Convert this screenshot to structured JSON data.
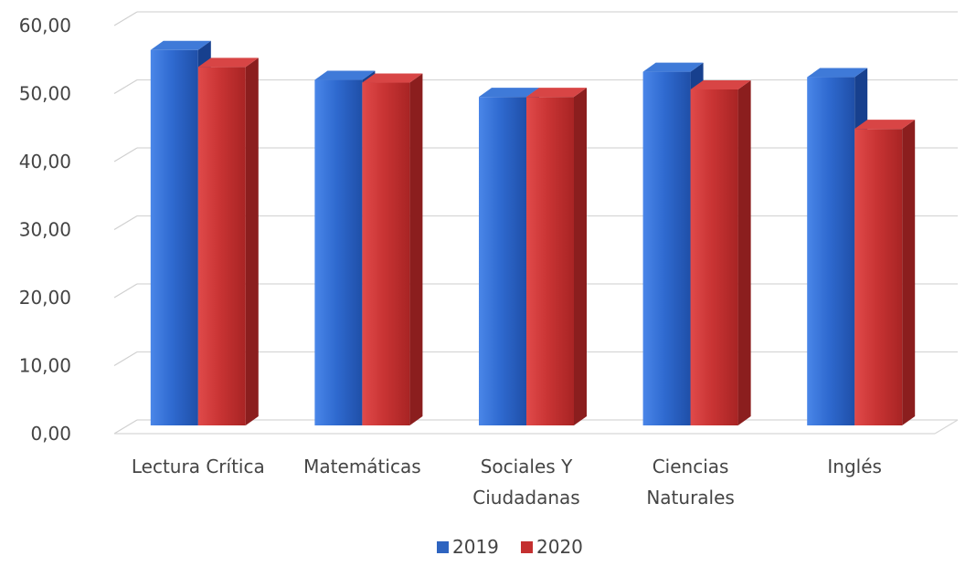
{
  "chart_data": {
    "type": "bar",
    "categories": [
      "Lectura Crítica",
      "Matemáticas",
      "Sociales Y Ciudadanas",
      "Ciencias Naturales",
      "Inglés"
    ],
    "category_lines": [
      [
        "Lectura Crítica"
      ],
      [
        "Matemáticas"
      ],
      [
        "Sociales Y",
        "Ciudadanas"
      ],
      [
        "Ciencias",
        "Naturales"
      ],
      [
        "Inglés"
      ]
    ],
    "series": [
      {
        "name": "2019",
        "values": [
          55.2,
          50.8,
          48.3,
          52.0,
          51.2
        ],
        "color": "#2e64c0"
      },
      {
        "name": "2020",
        "values": [
          52.7,
          50.4,
          48.3,
          49.4,
          43.6
        ],
        "color": "#c43030"
      }
    ],
    "yticks": [
      "0,00",
      "10,00",
      "20,00",
      "30,00",
      "40,00",
      "50,00",
      "60,00"
    ],
    "ylim": [
      0,
      60
    ],
    "grid": true,
    "legend_position": "bottom",
    "style": "3d-column"
  }
}
